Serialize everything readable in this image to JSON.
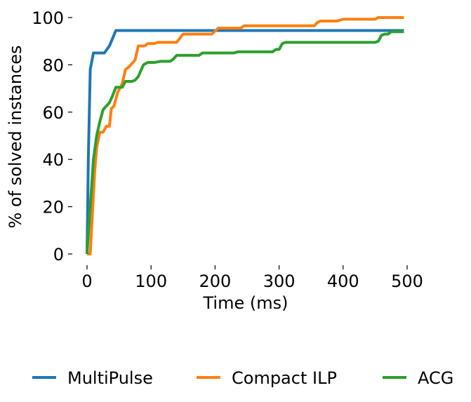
{
  "chart_data": {
    "type": "line",
    "title": "",
    "xlabel": "Time (ms)",
    "ylabel": "% of solved instances",
    "xlim": [
      0,
      500
    ],
    "ylim": [
      0,
      100
    ],
    "xticks": [
      0,
      100,
      200,
      300,
      400,
      500
    ],
    "yticks": [
      0,
      20,
      40,
      60,
      80,
      100
    ],
    "grid": false,
    "legend_position": "bottom",
    "series": [
      {
        "name": "MultiPulse",
        "color": "#1f77b4",
        "points": [
          [
            0,
            0
          ],
          [
            2,
            40
          ],
          [
            5,
            78
          ],
          [
            10,
            85
          ],
          [
            27,
            85
          ],
          [
            35,
            88
          ],
          [
            45,
            94.5
          ],
          [
            495,
            94.5
          ]
        ]
      },
      {
        "name": "Compact ILP",
        "color": "#ff7f0e",
        "points": [
          [
            0,
            0
          ],
          [
            5,
            0
          ],
          [
            8,
            15
          ],
          [
            12,
            35
          ],
          [
            15,
            45
          ],
          [
            20,
            51.5
          ],
          [
            25,
            51.5
          ],
          [
            30,
            54
          ],
          [
            35,
            54
          ],
          [
            38,
            61.5
          ],
          [
            42,
            62.5
          ],
          [
            48,
            68.5
          ],
          [
            55,
            72
          ],
          [
            60,
            78
          ],
          [
            65,
            79
          ],
          [
            70,
            80.5
          ],
          [
            75,
            82
          ],
          [
            80,
            88
          ],
          [
            90,
            88
          ],
          [
            95,
            89
          ],
          [
            105,
            89
          ],
          [
            110,
            89.5
          ],
          [
            140,
            89.5
          ],
          [
            150,
            93
          ],
          [
            195,
            93
          ],
          [
            205,
            95.5
          ],
          [
            240,
            95.5
          ],
          [
            245,
            96.5
          ],
          [
            355,
            96.5
          ],
          [
            360,
            98
          ],
          [
            365,
            98.5
          ],
          [
            390,
            98.5
          ],
          [
            400,
            99.3
          ],
          [
            450,
            99.3
          ],
          [
            455,
            100
          ],
          [
            495,
            100
          ]
        ]
      },
      {
        "name": "ACG",
        "color": "#2ca02c",
        "points": [
          [
            0,
            0
          ],
          [
            5,
            20
          ],
          [
            10,
            40
          ],
          [
            15,
            50
          ],
          [
            20,
            56
          ],
          [
            25,
            61
          ],
          [
            30,
            62.5
          ],
          [
            35,
            64
          ],
          [
            40,
            67
          ],
          [
            45,
            70.5
          ],
          [
            55,
            70.5
          ],
          [
            60,
            73
          ],
          [
            70,
            73
          ],
          [
            75,
            73.5
          ],
          [
            80,
            75
          ],
          [
            88,
            80
          ],
          [
            95,
            81
          ],
          [
            105,
            81
          ],
          [
            115,
            81.5
          ],
          [
            130,
            81.5
          ],
          [
            135,
            82.5
          ],
          [
            140,
            84
          ],
          [
            175,
            84
          ],
          [
            180,
            85
          ],
          [
            230,
            85
          ],
          [
            235,
            85.5
          ],
          [
            290,
            85.5
          ],
          [
            295,
            86.5
          ],
          [
            300,
            86.5
          ],
          [
            305,
            89
          ],
          [
            310,
            89.5
          ],
          [
            450,
            89.5
          ],
          [
            455,
            90
          ],
          [
            460,
            92.5
          ],
          [
            465,
            93
          ],
          [
            470,
            93
          ],
          [
            475,
            94
          ],
          [
            495,
            94
          ]
        ]
      }
    ]
  }
}
